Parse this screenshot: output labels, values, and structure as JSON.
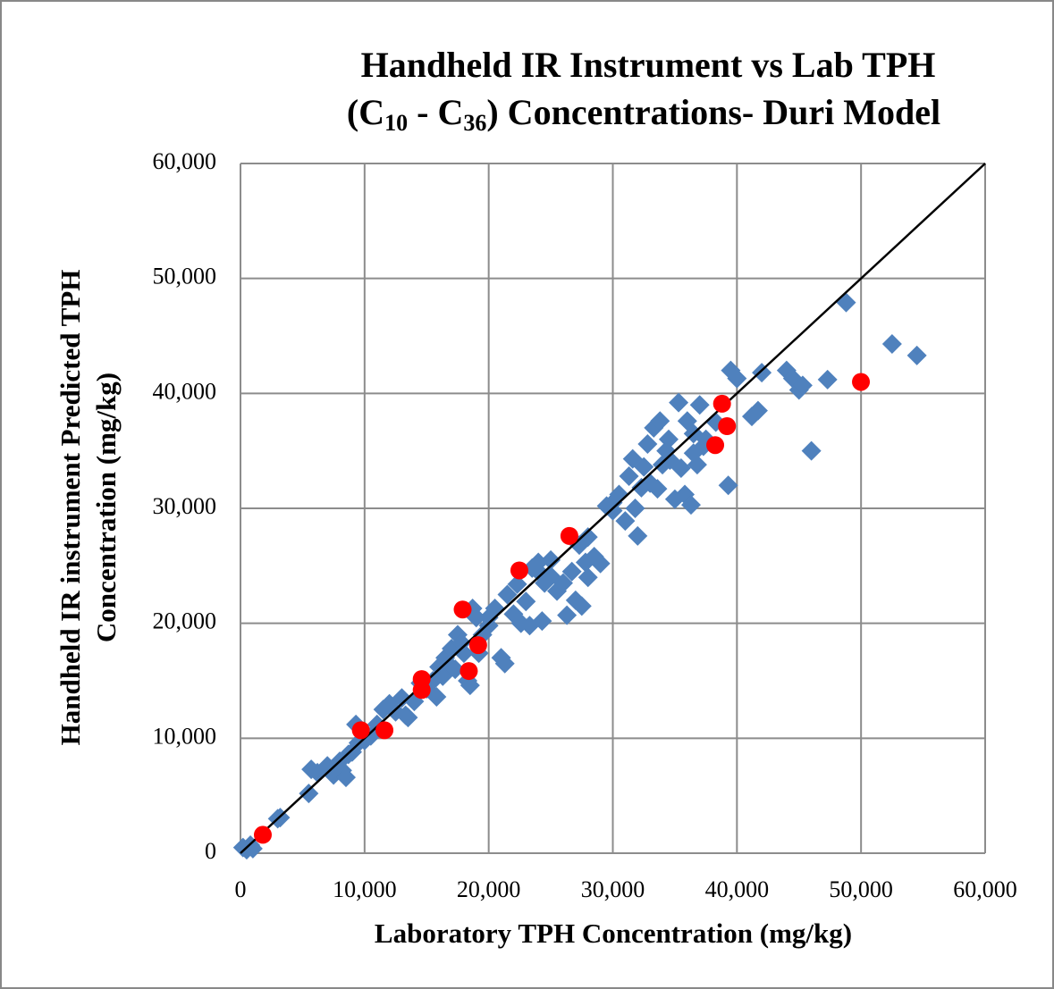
{
  "chart_data": {
    "type": "scatter",
    "title": [
      "Handheld IR Instrument vs Lab TPH",
      "(C",
      "10",
      " - C",
      "36",
      ") Concentrations- Duri Model"
    ],
    "x_label": "Laboratory TPH Concentration (mg/kg)",
    "y_label": [
      "Handheld IR instrument Predicted TPH",
      "Concentration (mg/kg)"
    ],
    "xlim": [
      0,
      60000
    ],
    "ylim": [
      0,
      60000
    ],
    "xticks": [
      0,
      {
        "value": 10000,
        "label": "10,000"
      },
      {
        "value": 20000,
        "label": "20,000"
      },
      {
        "value": 30000,
        "label": "30,000"
      },
      {
        "value": 40000,
        "label": "40,000"
      },
      {
        "value": 50000,
        "label": "50,000"
      },
      {
        "value": 60000,
        "label": "60,000"
      }
    ],
    "yticks": [
      0,
      {
        "value": 10000,
        "label": "10,000"
      },
      {
        "value": 20000,
        "label": "20,000"
      },
      {
        "value": 30000,
        "label": "30,000"
      },
      {
        "value": 40000,
        "label": "40,000"
      },
      {
        "value": 50000,
        "label": "50,000"
      },
      {
        "value": 60000,
        "label": "60,000"
      }
    ],
    "grid": true,
    "series": [
      {
        "color": "#4f81bd",
        "marker": "diamond",
        "x": [
          200,
          500,
          800,
          1000,
          3000,
          3200,
          5500,
          5700,
          6200,
          7000,
          7500,
          8000,
          8200,
          8500,
          8700,
          9000,
          9300,
          9500,
          10000,
          10500,
          11000,
          11500,
          12000,
          12500,
          13000,
          13300,
          13500,
          14000,
          14500,
          15000,
          15500,
          15800,
          16000,
          16300,
          16500,
          16800,
          17000,
          17300,
          17500,
          17800,
          18000,
          18300,
          18500,
          18700,
          19000,
          19200,
          19500,
          20000,
          20500,
          21000,
          21300,
          21500,
          22000,
          22300,
          22600,
          23000,
          23300,
          23500,
          24000,
          24300,
          24500,
          25000,
          25500,
          26000,
          26300,
          26700,
          27000,
          27300,
          27500,
          27800,
          28000,
          28500,
          29000,
          29500,
          30000,
          30500,
          31000,
          31300,
          31600,
          31800,
          32000,
          32300,
          32500,
          32800,
          33000,
          33300,
          33600,
          33800,
          34000,
          34300,
          34600,
          35000,
          35300,
          35500,
          35800,
          36000,
          36300,
          36500,
          36800,
          37000,
          37300,
          37500,
          39300,
          39500,
          40000,
          41200,
          41700,
          42000,
          44000,
          44500,
          45000,
          45300,
          46000,
          47300,
          48800,
          52500,
          54500,
          38300,
          36500,
          34500,
          30000,
          28000,
          25000,
          20000,
          24000
        ],
        "values": [
          500,
          300,
          700,
          400,
          3000,
          3100,
          5200,
          7300,
          7000,
          7600,
          6800,
          8000,
          7200,
          6600,
          8600,
          8800,
          11200,
          9600,
          9800,
          10200,
          11200,
          12500,
          13000,
          12300,
          13500,
          12000,
          11800,
          13200,
          14800,
          14300,
          15000,
          13600,
          16200,
          15400,
          17000,
          16400,
          17800,
          16000,
          19000,
          18300,
          17400,
          15000,
          14600,
          21300,
          20500,
          17400,
          19000,
          19800,
          21300,
          17000,
          16500,
          22500,
          20800,
          23400,
          20000,
          21900,
          19800,
          24800,
          25300,
          20200,
          23500,
          24100,
          22800,
          23500,
          20700,
          24500,
          22000,
          26800,
          21500,
          25300,
          24000,
          25800,
          25200,
          30200,
          29800,
          31200,
          28900,
          32800,
          34300,
          30000,
          27600,
          31800,
          33600,
          35600,
          32200,
          37000,
          31700,
          37600,
          33800,
          35000,
          34200,
          30800,
          39200,
          33500,
          31200,
          37600,
          30300,
          34800,
          33800,
          39000,
          35400,
          36000,
          32000,
          42000,
          41300,
          38000,
          38500,
          41800,
          42000,
          41300,
          40300,
          40700,
          35000,
          41200,
          47900,
          44300,
          43300,
          37500,
          36500,
          36000,
          30500,
          27500,
          25500,
          20500,
          24500
        ]
      },
      {
        "color": "#ff0000",
        "marker": "circle",
        "x": [
          1800,
          9700,
          11600,
          14600,
          14600,
          17900,
          18400,
          19150,
          22470,
          26500,
          38250,
          38800,
          39200,
          49990
        ],
        "values": [
          1600,
          10700,
          10700,
          15150,
          14200,
          21200,
          15850,
          18100,
          24600,
          27600,
          35500,
          39100,
          37150,
          41000
        ]
      }
    ],
    "reference_line": {
      "color": "#000000",
      "x": [
        0,
        60000
      ],
      "values": [
        0,
        60000
      ]
    }
  }
}
